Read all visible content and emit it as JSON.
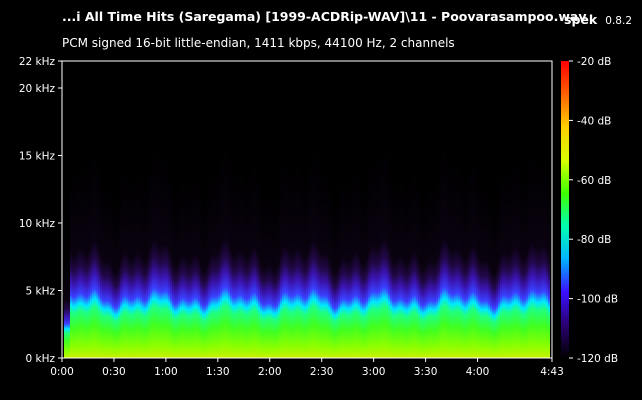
{
  "window": {
    "file_title": "...i All Time Hits (Saregama) [1999-ACDRip-WAV]\\11 - Poovarasampoo.wav",
    "app_name": "spek",
    "app_version": "0.8.2",
    "stream_info": "PCM signed 16-bit little-endian, 1411 kbps, 44100 Hz, 2 channels"
  },
  "chart_data": {
    "type": "heatmap",
    "title": "",
    "x_tick_labels": [
      "0:00",
      "0:30",
      "1:00",
      "1:30",
      "2:00",
      "2:30",
      "3:00",
      "3:30",
      "4:00",
      "4:43"
    ],
    "x_tick_seconds": [
      0,
      30,
      60,
      90,
      120,
      150,
      180,
      210,
      240,
      283
    ],
    "xlim_seconds": [
      0,
      283
    ],
    "y_tick_labels": [
      "0 kHz",
      "5 kHz",
      "10 kHz",
      "15 kHz",
      "20 kHz",
      "22 kHz"
    ],
    "y_tick_khz": [
      0,
      5,
      10,
      15,
      20,
      22
    ],
    "ylim_khz": [
      0,
      22
    ],
    "colorbar_labels": [
      "-20 dB",
      "-40 dB",
      "-60 dB",
      "-80 dB",
      "-100 dB",
      "-120 dB"
    ],
    "colorbar_db": [
      -20,
      -40,
      -60,
      -80,
      -100,
      -120
    ],
    "colorbar_range_db": [
      -120,
      -20
    ],
    "colorbar_colors": [
      "#000000",
      "#2a0070",
      "#3b10ff",
      "#00b4ff",
      "#00ffb0",
      "#40ff00",
      "#d8ff00",
      "#ffd000",
      "#ff6000",
      "#ff0000"
    ],
    "grid": false
  }
}
